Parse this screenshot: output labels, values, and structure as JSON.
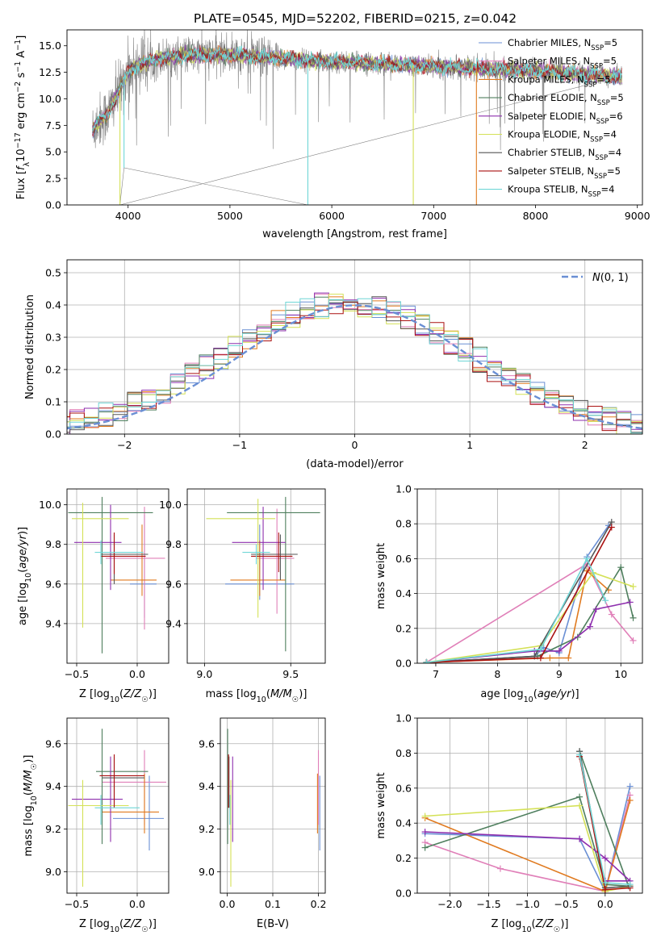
{
  "figure_title": "PLATE=0545, MJD=52202, FIBERID=0215, z=0.042",
  "models": [
    {
      "name": "Chabrier MILES",
      "nssp": "5",
      "color": "#6a8fd4"
    },
    {
      "name": "Salpeter MILES",
      "nssp": "5",
      "color": "#e07fb8"
    },
    {
      "name": "Kroupa MILES",
      "nssp": "5",
      "color": "#e07a1f"
    },
    {
      "name": "Chabrier ELODIE",
      "nssp": "5",
      "color": "#4f7f5e"
    },
    {
      "name": "Salpeter ELODIE",
      "nssp": "6",
      "color": "#8e2fae"
    },
    {
      "name": "Kroupa ELODIE",
      "nssp": "4",
      "color": "#d4e157"
    },
    {
      "name": "Chabrier STELIB",
      "nssp": "4",
      "color": "#555555"
    },
    {
      "name": "Salpeter STELIB",
      "nssp": "5",
      "color": "#aa1111"
    },
    {
      "name": "Kroupa STELIB",
      "nssp": "4",
      "color": "#6fd6d6"
    }
  ],
  "chart_data": [
    {
      "id": "spectrum",
      "type": "line",
      "xlabel": "wavelength [Angstrom, rest frame]",
      "ylabel": "Flux [f_λ 10^-17 erg cm^-2 s^-1 A^-1]",
      "xlim": [
        3400,
        9050
      ],
      "ylim": [
        0,
        16.5
      ],
      "xticks": [
        4000,
        5000,
        6000,
        7000,
        8000,
        9000
      ],
      "yticks": [
        0.0,
        2.5,
        5.0,
        7.5,
        10.0,
        12.5,
        15.0
      ],
      "grid": false,
      "legend": "right",
      "data_color": "#808080",
      "model_continuum": {
        "x": [
          3650,
          3700,
          3800,
          3900,
          4000,
          4100,
          4300,
          4500,
          4800,
          5100,
          5500,
          5900,
          6300,
          6700,
          7100,
          7400,
          7800,
          8200,
          8500,
          8800,
          8850
        ],
        "y": [
          7.0,
          7.8,
          8.6,
          10.5,
          12.6,
          13.2,
          13.8,
          14.1,
          14.2,
          14.1,
          13.8,
          13.5,
          13.4,
          13.2,
          13.0,
          12.9,
          12.7,
          12.5,
          12.3,
          12.1,
          12.0
        ]
      },
      "line_drops": [
        {
          "wavelength": 3920,
          "value": 0.0
        },
        {
          "wavelength": 3960,
          "value": 3.5
        },
        {
          "wavelength": 5765,
          "value": 0.0
        },
        {
          "wavelength": 6800,
          "value": 0.0
        },
        {
          "wavelength": 7420,
          "value": 0.0
        }
      ]
    },
    {
      "id": "residuals",
      "type": "line",
      "xlabel": "(data-model)/error",
      "ylabel": "Normed distribution",
      "xlim": [
        -2.5,
        2.5
      ],
      "ylim": [
        0,
        0.54
      ],
      "xticks": [
        -2,
        -1,
        0,
        1,
        2
      ],
      "yticks": [
        0.0,
        0.1,
        0.2,
        0.3,
        0.4,
        0.5
      ],
      "grid": true,
      "legend": "top-right",
      "reference_label": "N(0,1)",
      "reference_color": "#6a8fd4"
    },
    {
      "id": "z-age",
      "type": "scatter",
      "xlabel": "Z [log10(Z/Z☉)]",
      "ylabel": "age [log10(age/yr)]",
      "xlim": [
        -0.58,
        0.26
      ],
      "ylim": [
        9.2,
        10.08
      ],
      "xticks": [
        -0.5,
        0.0
      ],
      "yticks": [
        9.4,
        9.6,
        9.8,
        10.0
      ],
      "grid": true,
      "crosses": [
        {
          "model": 0,
          "x": 0.06,
          "xerr": [
            0.12,
            0.1
          ],
          "y": 9.6,
          "yerr": [
            0.17,
            0.35
          ]
        },
        {
          "model": 1,
          "x": 0.06,
          "xerr": [
            0.32,
            0.17
          ],
          "y": 9.73,
          "yerr": [
            0.36,
            0.26
          ]
        },
        {
          "model": 2,
          "x": 0.04,
          "xerr": [
            0.26,
            0.12
          ],
          "y": 9.62,
          "yerr": [
            0.08,
            0.28
          ]
        },
        {
          "model": 3,
          "x": -0.29,
          "xerr": [
            0.28,
            0.42
          ],
          "y": 9.96,
          "yerr": [
            0.71,
            0.08
          ]
        },
        {
          "model": 4,
          "x": -0.22,
          "xerr": [
            0.3,
            0.09
          ],
          "y": 9.81,
          "yerr": [
            0.24,
            0.19
          ]
        },
        {
          "model": 5,
          "x": -0.45,
          "xerr": [
            0.09,
            0.38
          ],
          "y": 9.93,
          "yerr": [
            0.55,
            0.08
          ]
        },
        {
          "model": 6,
          "x": -0.19,
          "xerr": [
            0.11,
            0.28
          ],
          "y": 9.75,
          "yerr": [
            0.15,
            0.1
          ]
        },
        {
          "model": 7,
          "x": -0.19,
          "xerr": [
            0.11,
            0.26
          ],
          "y": 9.74,
          "yerr": [
            0.09,
            0.12
          ]
        },
        {
          "model": 8,
          "x": -0.3,
          "xerr": [
            0.05,
            0.35
          ],
          "y": 9.76,
          "yerr": [
            0.06,
            0.06
          ]
        }
      ]
    },
    {
      "id": "mass-age",
      "type": "scatter",
      "xlabel": "mass [log10(M/M☉)]",
      "ylabel": "",
      "xlim": [
        8.9,
        9.7
      ],
      "ylim": [
        9.2,
        10.08
      ],
      "xticks": [
        9.0,
        9.5
      ],
      "yticks": [
        9.4,
        9.6,
        9.8,
        10.0
      ],
      "grid": true,
      "crosses": [
        {
          "model": 0,
          "x": 9.32,
          "xerr": [
            0.2,
            0.2
          ],
          "y": 9.6,
          "yerr": [
            0.08,
            0.3
          ]
        },
        {
          "model": 1,
          "x": 9.42,
          "xerr": [
            0.12,
            0.1
          ],
          "y": 9.73,
          "yerr": [
            0.28,
            0.25
          ]
        },
        {
          "model": 2,
          "x": 9.32,
          "xerr": [
            0.17,
            0.15
          ],
          "y": 9.62,
          "yerr": [
            0.08,
            0.2
          ]
        },
        {
          "model": 3,
          "x": 9.47,
          "xerr": [
            0.34,
            0.2
          ],
          "y": 9.96,
          "yerr": [
            0.7,
            0.08
          ]
        },
        {
          "model": 4,
          "x": 9.34,
          "xerr": [
            0.18,
            0.13
          ],
          "y": 9.81,
          "yerr": [
            0.24,
            0.18
          ]
        },
        {
          "model": 5,
          "x": 9.31,
          "xerr": [
            0.3,
            0.1
          ],
          "y": 9.93,
          "yerr": [
            0.5,
            0.1
          ]
        },
        {
          "model": 6,
          "x": 9.44,
          "xerr": [
            0.17,
            0.1
          ],
          "y": 9.75,
          "yerr": [
            0.13,
            0.1
          ]
        },
        {
          "model": 7,
          "x": 9.43,
          "xerr": [
            0.16,
            0.08
          ],
          "y": 9.74,
          "yerr": [
            0.08,
            0.12
          ]
        },
        {
          "model": 8,
          "x": 9.3,
          "xerr": [
            0.08,
            0.08
          ],
          "y": 9.76,
          "yerr": [
            0.06,
            0.04
          ]
        }
      ]
    },
    {
      "id": "age-weights",
      "type": "line",
      "xlabel": "age [log10(age/yr)]",
      "ylabel": "mass weight",
      "xlim": [
        6.7,
        10.35
      ],
      "ylim": [
        0,
        1.0
      ],
      "xticks": [
        7,
        8,
        9,
        10
      ],
      "yticks": [
        0.0,
        0.2,
        0.4,
        0.6,
        0.8,
        1.0
      ],
      "grid": true,
      "series": [
        {
          "model": 0,
          "x": [
            6.85,
            8.6,
            8.75,
            9.0,
            9.45,
            9.8
          ],
          "y": [
            0.005,
            0.04,
            0.09,
            0.06,
            0.61,
            0.79
          ]
        },
        {
          "model": 1,
          "x": [
            6.85,
            9.45,
            9.85,
            10.2
          ],
          "y": [
            0.005,
            0.57,
            0.28,
            0.13
          ]
        },
        {
          "model": 2,
          "x": [
            6.85,
            8.85,
            9.15,
            9.45,
            9.8
          ],
          "y": [
            0.005,
            0.03,
            0.03,
            0.53,
            0.42
          ]
        },
        {
          "model": 3,
          "x": [
            6.85,
            8.65,
            9.3,
            10.0,
            10.2
          ],
          "y": [
            0.005,
            0.04,
            0.15,
            0.55,
            0.26
          ]
        },
        {
          "model": 4,
          "x": [
            6.85,
            8.6,
            9.0,
            9.5,
            9.6,
            10.15
          ],
          "y": [
            0.005,
            0.07,
            0.07,
            0.21,
            0.31,
            0.35
          ]
        },
        {
          "model": 5,
          "x": [
            6.85,
            8.7,
            9.55,
            10.2
          ],
          "y": [
            0.005,
            0.1,
            0.52,
            0.44
          ]
        },
        {
          "model": 6,
          "x": [
            6.85,
            8.6,
            9.85
          ],
          "y": [
            0.005,
            0.04,
            0.81
          ]
        },
        {
          "model": 7,
          "x": [
            6.85,
            8.7,
            9.85
          ],
          "y": [
            0.005,
            0.03,
            0.78
          ]
        },
        {
          "model": 8,
          "x": [
            6.85,
            8.7,
            9.45,
            9.75
          ],
          "y": [
            0.005,
            0.08,
            0.6,
            0.36
          ]
        }
      ]
    },
    {
      "id": "z-mass",
      "type": "scatter",
      "xlabel": "Z [log10(Z/Z☉)]",
      "ylabel": "mass [log10(M/M☉)]",
      "xlim": [
        -0.58,
        0.26
      ],
      "ylim": [
        8.9,
        9.72
      ],
      "xticks": [
        -0.5,
        0.0
      ],
      "yticks": [
        9.0,
        9.2,
        9.4,
        9.6
      ],
      "grid": true,
      "crosses": [
        {
          "model": 0,
          "x": 0.1,
          "xerr": [
            0.3,
            0.12
          ],
          "y": 9.25,
          "yerr": [
            0.15,
            0.2
          ]
        },
        {
          "model": 1,
          "x": 0.06,
          "xerr": [
            0.35,
            0.18
          ],
          "y": 9.42,
          "yerr": [
            0.2,
            0.15
          ]
        },
        {
          "model": 2,
          "x": 0.06,
          "xerr": [
            0.35,
            0.12
          ],
          "y": 9.28,
          "yerr": [
            0.1,
            0.18
          ]
        },
        {
          "model": 3,
          "x": -0.29,
          "xerr": [
            0.05,
            0.38
          ],
          "y": 9.47,
          "yerr": [
            0.34,
            0.2
          ]
        },
        {
          "model": 4,
          "x": -0.22,
          "xerr": [
            0.32,
            0.1
          ],
          "y": 9.34,
          "yerr": [
            0.2,
            0.2
          ]
        },
        {
          "model": 5,
          "x": -0.45,
          "xerr": [
            0.12,
            0.38
          ],
          "y": 9.31,
          "yerr": [
            0.38,
            0.12
          ]
        },
        {
          "model": 6,
          "x": -0.19,
          "xerr": [
            0.1,
            0.25
          ],
          "y": 9.44,
          "yerr": [
            0.14,
            0.1
          ]
        },
        {
          "model": 7,
          "x": -0.19,
          "xerr": [
            0.12,
            0.25
          ],
          "y": 9.45,
          "yerr": [
            0.15,
            0.1
          ]
        },
        {
          "model": 8,
          "x": -0.3,
          "xerr": [
            0.05,
            0.32
          ],
          "y": 9.3,
          "yerr": [
            0.08,
            0.06
          ]
        }
      ]
    },
    {
      "id": "ebv-mass",
      "type": "scatter",
      "xlabel": "E(B-V)",
      "ylabel": "",
      "xlim": [
        -0.015,
        0.215
      ],
      "ylim": [
        8.9,
        9.72
      ],
      "xticks": [
        0.0,
        0.1,
        0.2
      ],
      "yticks": [
        9.0,
        9.2,
        9.4,
        9.6
      ],
      "grid": true,
      "crosses": [
        {
          "model": 0,
          "x": 0.203,
          "xerr": [
            0,
            0
          ],
          "y": 9.25,
          "yerr": [
            0.15,
            0.2
          ]
        },
        {
          "model": 1,
          "x": 0.2,
          "xerr": [
            0,
            0
          ],
          "y": 9.42,
          "yerr": [
            0.2,
            0.15
          ]
        },
        {
          "model": 2,
          "x": 0.198,
          "xerr": [
            0,
            0
          ],
          "y": 9.28,
          "yerr": [
            0.1,
            0.18
          ]
        },
        {
          "model": 3,
          "x": 0.001,
          "xerr": [
            0,
            0
          ],
          "y": 9.47,
          "yerr": [
            0.34,
            0.2
          ]
        },
        {
          "model": 4,
          "x": 0.012,
          "xerr": [
            0,
            0
          ],
          "y": 9.34,
          "yerr": [
            0.2,
            0.2
          ]
        },
        {
          "model": 5,
          "x": 0.008,
          "xerr": [
            0,
            0
          ],
          "y": 9.31,
          "yerr": [
            0.38,
            0.12
          ]
        },
        {
          "model": 6,
          "x": 0.004,
          "xerr": [
            0,
            0
          ],
          "y": 9.44,
          "yerr": [
            0.14,
            0.1
          ]
        },
        {
          "model": 7,
          "x": 0.003,
          "xerr": [
            0,
            0
          ],
          "y": 9.45,
          "yerr": [
            0.15,
            0.1
          ]
        },
        {
          "model": 8,
          "x": 0.006,
          "xerr": [
            0,
            0
          ],
          "y": 9.3,
          "yerr": [
            0.08,
            0.06
          ]
        }
      ]
    },
    {
      "id": "z-weights",
      "type": "line",
      "xlabel": "Z [log10(Z/Z☉)]",
      "ylabel": "mass weight",
      "xlim": [
        -2.42,
        0.48
      ],
      "ylim": [
        0,
        1.0
      ],
      "xticks": [
        -2.0,
        -1.5,
        -1.0,
        -0.5,
        0.0
      ],
      "yticks": [
        0.0,
        0.2,
        0.4,
        0.6,
        0.8,
        1.0
      ],
      "grid": true,
      "series": [
        {
          "model": 0,
          "x": [
            -2.32,
            -0.33,
            0.0,
            0.32
          ],
          "y": [
            0.34,
            0.31,
            0.01,
            0.61
          ]
        },
        {
          "model": 1,
          "x": [
            -2.32,
            -1.35,
            0.0,
            0.32
          ],
          "y": [
            0.29,
            0.14,
            0.01,
            0.56
          ]
        },
        {
          "model": 2,
          "x": [
            -2.32,
            0.0,
            0.32
          ],
          "y": [
            0.43,
            0.01,
            0.53
          ]
        },
        {
          "model": 3,
          "x": [
            -2.32,
            -0.33,
            0.0,
            0.3,
            -0.33
          ],
          "y": [
            0.26,
            0.55,
            0.05,
            0.04,
            0.81
          ]
        },
        {
          "model": 4,
          "x": [
            -2.32,
            -0.33,
            0.0,
            0.32,
            0.0
          ],
          "y": [
            0.35,
            0.31,
            0.2,
            0.07,
            0.07
          ]
        },
        {
          "model": 5,
          "x": [
            -2.32,
            -0.33,
            0.0,
            0.32
          ],
          "y": [
            0.44,
            0.5,
            0.01,
            0.04
          ]
        },
        {
          "model": 6,
          "x": [
            -0.33,
            0.0,
            0.32
          ],
          "y": [
            0.81,
            0.03,
            0.04
          ]
        },
        {
          "model": 7,
          "x": [
            -0.33,
            0.0,
            0.32
          ],
          "y": [
            0.78,
            0.02,
            0.03
          ]
        },
        {
          "model": 8,
          "x": [
            -0.33,
            0.0,
            0.32
          ],
          "y": [
            0.79,
            0.06,
            0.05
          ]
        }
      ]
    }
  ]
}
